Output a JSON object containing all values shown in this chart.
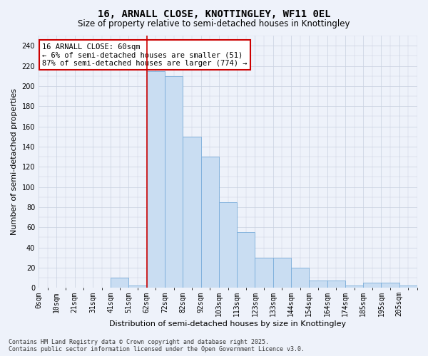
{
  "title": "16, ARNALL CLOSE, KNOTTINGLEY, WF11 0EL",
  "subtitle": "Size of property relative to semi-detached houses in Knottingley",
  "xlabel": "Distribution of semi-detached houses by size in Knottingley",
  "ylabel": "Number of semi-detached properties",
  "bin_labels": [
    "0sqm",
    "10sqm",
    "21sqm",
    "31sqm",
    "41sqm",
    "51sqm",
    "62sqm",
    "72sqm",
    "82sqm",
    "92sqm",
    "103sqm",
    "113sqm",
    "123sqm",
    "133sqm",
    "144sqm",
    "154sqm",
    "164sqm",
    "174sqm",
    "185sqm",
    "195sqm",
    "205sqm"
  ],
  "bin_values": [
    0,
    0,
    0,
    0,
    10,
    2,
    215,
    210,
    150,
    130,
    85,
    55,
    30,
    30,
    20,
    7,
    7,
    2,
    5,
    5,
    2
  ],
  "bar_color": "#c9ddf2",
  "bar_edge_color": "#7aadda",
  "property_bin_index": 6,
  "vline_color": "#cc0000",
  "annotation_title": "16 ARNALL CLOSE: 60sqm",
  "annotation_line1": "← 6% of semi-detached houses are smaller (51)",
  "annotation_line2": "87% of semi-detached houses are larger (774) →",
  "annotation_box_color": "#ffffff",
  "annotation_box_edge": "#cc0000",
  "ylim": [
    0,
    250
  ],
  "yticks": [
    0,
    20,
    40,
    60,
    80,
    100,
    120,
    140,
    160,
    180,
    200,
    220,
    240
  ],
  "footer_line1": "Contains HM Land Registry data © Crown copyright and database right 2025.",
  "footer_line2": "Contains public sector information licensed under the Open Government Licence v3.0.",
  "bg_color": "#eef2fa",
  "grid_color": "#c8d0e0",
  "title_fontsize": 10,
  "subtitle_fontsize": 8.5,
  "axis_label_fontsize": 8,
  "tick_fontsize": 7,
  "annotation_fontsize": 7.5,
  "footer_fontsize": 6
}
